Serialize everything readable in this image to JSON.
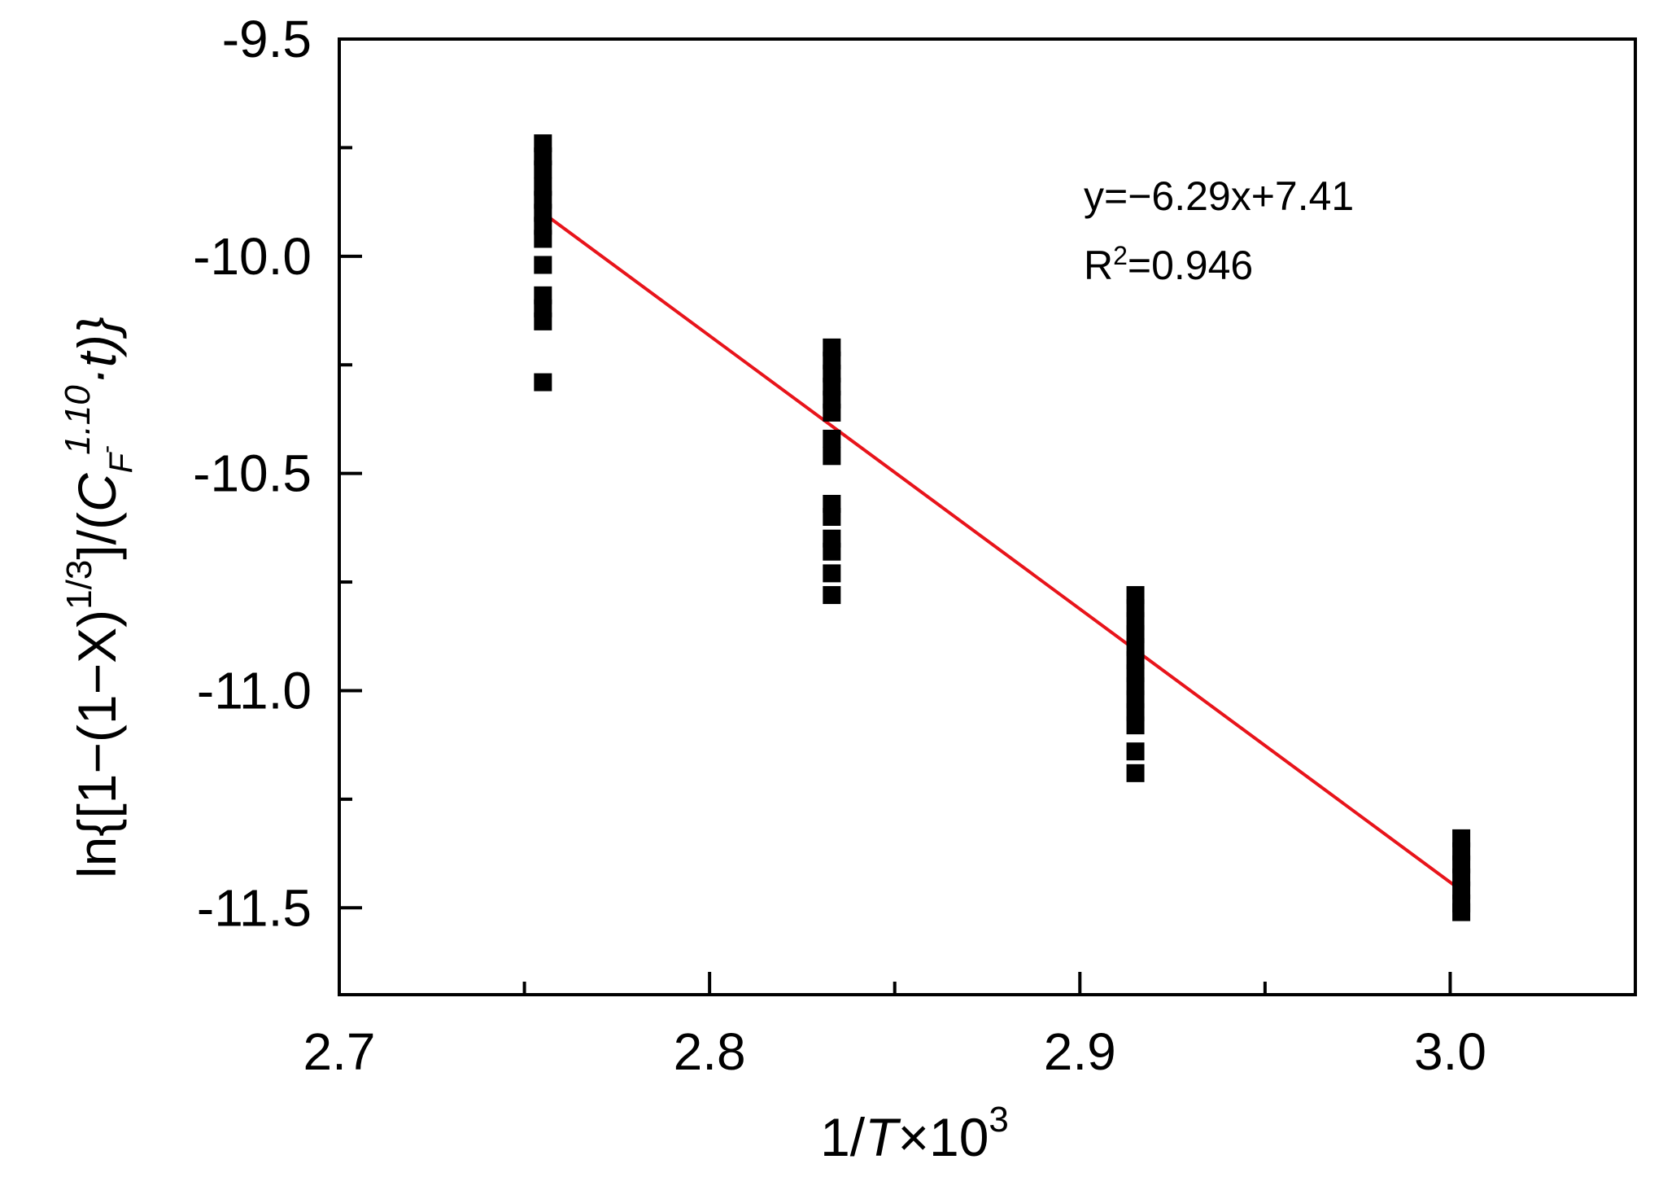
{
  "chart_data": {
    "type": "scatter",
    "title": "",
    "xlabel": {
      "main": "1/",
      "italic": "T",
      "times": "×10",
      "sup": "3"
    },
    "ylabel": {
      "prefix": "ln{[1−(1−X)",
      "sup1": "1/3",
      "mid": "]/(",
      "c": "C",
      "csub": "F",
      "csub2": "-",
      "csup": "1.10",
      "tail": "·t)}"
    },
    "xlim": [
      2.7,
      3.05
    ],
    "ylim": [
      -11.7,
      -9.5
    ],
    "x_ticks": [
      2.7,
      2.8,
      2.9,
      3.0
    ],
    "x_tick_labels": [
      "2.7",
      "2.8",
      "2.9",
      "3.0"
    ],
    "x_minor_ticks": [
      2.75,
      2.85,
      2.95
    ],
    "y_ticks": [
      -9.5,
      -10.0,
      -10.5,
      -11.0,
      -11.5
    ],
    "y_tick_labels": [
      "-9.5",
      "-10.0",
      "-10.5",
      "-11.0",
      "-11.5"
    ],
    "y_minor_ticks": [
      -9.75,
      -10.25,
      -10.75,
      -11.25
    ],
    "grid": false,
    "series": [
      {
        "marker": "square",
        "color": "#000000",
        "points": [
          {
            "x": 2.755,
            "y": -9.74
          },
          {
            "x": 2.755,
            "y": -9.77
          },
          {
            "x": 2.755,
            "y": -9.8
          },
          {
            "x": 2.755,
            "y": -9.84
          },
          {
            "x": 2.755,
            "y": -9.87
          },
          {
            "x": 2.755,
            "y": -9.9
          },
          {
            "x": 2.755,
            "y": -9.93
          },
          {
            "x": 2.755,
            "y": -9.96
          },
          {
            "x": 2.755,
            "y": -10.02
          },
          {
            "x": 2.755,
            "y": -10.09
          },
          {
            "x": 2.755,
            "y": -10.12
          },
          {
            "x": 2.755,
            "y": -10.15
          },
          {
            "x": 2.755,
            "y": -10.29
          },
          {
            "x": 2.833,
            "y": -10.21
          },
          {
            "x": 2.833,
            "y": -10.24
          },
          {
            "x": 2.833,
            "y": -10.27
          },
          {
            "x": 2.833,
            "y": -10.3
          },
          {
            "x": 2.833,
            "y": -10.33
          },
          {
            "x": 2.833,
            "y": -10.36
          },
          {
            "x": 2.833,
            "y": -10.42
          },
          {
            "x": 2.833,
            "y": -10.46
          },
          {
            "x": 2.833,
            "y": -10.57
          },
          {
            "x": 2.833,
            "y": -10.6
          },
          {
            "x": 2.833,
            "y": -10.65
          },
          {
            "x": 2.833,
            "y": -10.68
          },
          {
            "x": 2.833,
            "y": -10.73
          },
          {
            "x": 2.833,
            "y": -10.78
          },
          {
            "x": 2.915,
            "y": -10.78
          },
          {
            "x": 2.915,
            "y": -10.81
          },
          {
            "x": 2.915,
            "y": -10.84
          },
          {
            "x": 2.915,
            "y": -10.87
          },
          {
            "x": 2.915,
            "y": -10.9
          },
          {
            "x": 2.915,
            "y": -10.93
          },
          {
            "x": 2.915,
            "y": -10.96
          },
          {
            "x": 2.915,
            "y": -10.99
          },
          {
            "x": 2.915,
            "y": -11.02
          },
          {
            "x": 2.915,
            "y": -11.05
          },
          {
            "x": 2.915,
            "y": -11.08
          },
          {
            "x": 2.915,
            "y": -11.14
          },
          {
            "x": 2.915,
            "y": -11.19
          },
          {
            "x": 3.003,
            "y": -11.34
          },
          {
            "x": 3.003,
            "y": -11.37
          },
          {
            "x": 3.003,
            "y": -11.4
          },
          {
            "x": 3.003,
            "y": -11.43
          },
          {
            "x": 3.003,
            "y": -11.46
          },
          {
            "x": 3.003,
            "y": -11.49
          },
          {
            "x": 3.003,
            "y": -11.51
          }
        ]
      }
    ],
    "fit_line": {
      "color": "#e8141b",
      "x": [
        2.755,
        3.003
      ],
      "y": [
        -9.9,
        -11.46
      ],
      "equation": "y=−6.29x+7.41",
      "r2_prefix": "R",
      "r2_sup": "2",
      "r2_value": "=0.946"
    }
  }
}
